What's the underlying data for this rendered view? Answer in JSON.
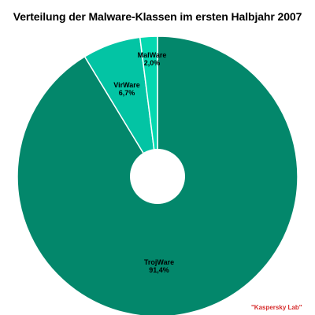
{
  "chart_data": {
    "type": "pie",
    "title": "Verteilung der Malware-Klassen im ersten Halbjahr 2007",
    "donut": true,
    "slices": [
      {
        "label": "TrojWare",
        "value": 91.4,
        "display": "91,4%",
        "color": "#03876b"
      },
      {
        "label": "VirWare",
        "value": 6.7,
        "display": "6,7%",
        "color": "#03c4a4"
      },
      {
        "label": "MalWare",
        "value": 2.0,
        "display": "2,0%",
        "color": "#05d8b0"
      }
    ],
    "source": "\"Kaspersky Lab\""
  }
}
